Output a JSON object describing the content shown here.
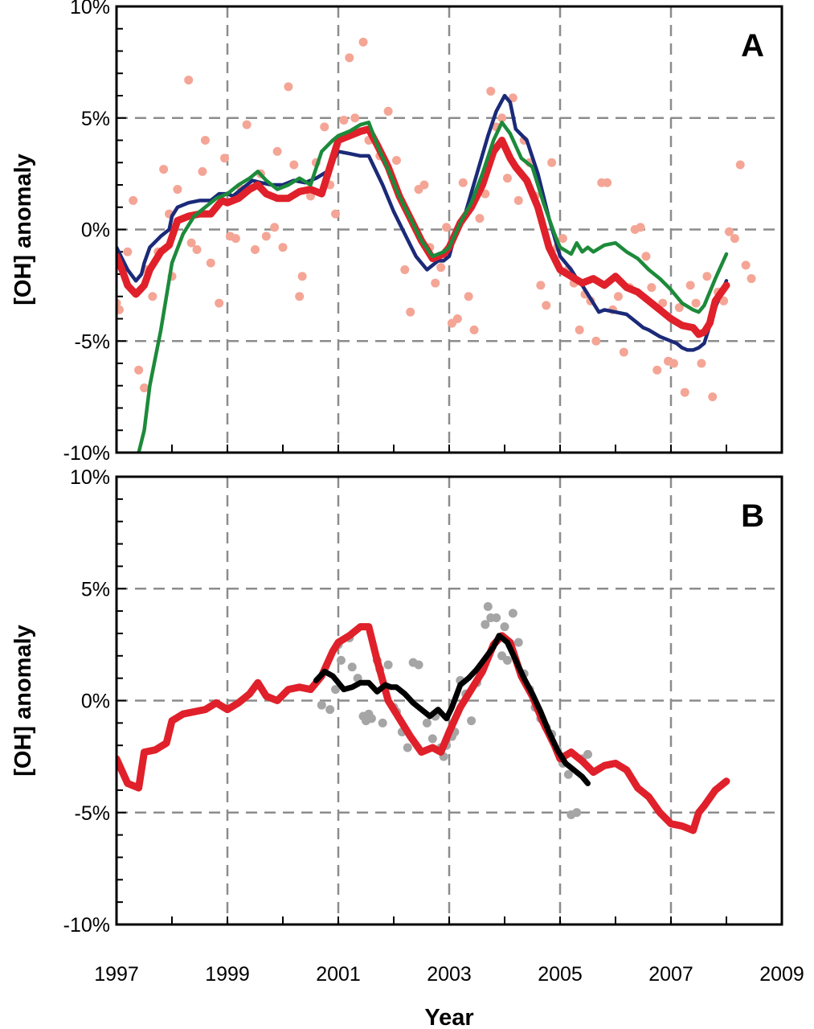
{
  "chart_data": [
    {
      "type": "line",
      "panel_label": "A",
      "xlabel": "",
      "ylabel": "[OH] anomaly",
      "xlim": [
        1997,
        2009
      ],
      "ylim": [
        -10,
        10
      ],
      "y_ticks": [
        "10%",
        "5%",
        "0%",
        "-5%",
        "-10%"
      ],
      "y_tick_values": [
        10,
        5,
        0,
        -5,
        -10
      ],
      "x_tick_values": [
        1997,
        1999,
        2001,
        2003,
        2005,
        2007,
        2009
      ],
      "grid": true,
      "series": [
        {
          "color": "#1b2a78",
          "style": "line",
          "x": [
            1997.0,
            1997.1,
            1997.2,
            1997.35,
            1997.45,
            1997.5,
            1997.6,
            1997.8,
            1997.95,
            1998.0,
            1998.1,
            1998.3,
            1998.5,
            1998.7,
            1998.85,
            1999.0,
            1999.1,
            1999.3,
            1999.45,
            1999.6,
            1999.8,
            2000.0,
            2000.2,
            2000.4,
            2000.6,
            2000.8,
            2001.0,
            2001.2,
            2001.4,
            2001.55,
            2001.8,
            2002.0,
            2002.2,
            2002.4,
            2002.6,
            2002.8,
            2002.9,
            2003.0,
            2003.1,
            2003.3,
            2003.5,
            2003.7,
            2003.85,
            2004.0,
            2004.1,
            2004.2,
            2004.4,
            2004.6,
            2004.8,
            2005.0,
            2005.1,
            2005.2,
            2005.3,
            2005.4,
            2005.5,
            2005.6,
            2005.7,
            2005.8,
            2006.0,
            2006.2,
            2006.4,
            2006.5,
            2006.6,
            2006.8,
            2007.0,
            2007.1,
            2007.2,
            2007.3,
            2007.4,
            2007.5,
            2007.6,
            2007.7,
            2007.8,
            2008.0
          ],
          "y": [
            -0.8,
            -1.3,
            -1.8,
            -2.3,
            -2.0,
            -1.5,
            -0.8,
            -0.3,
            0.0,
            0.6,
            1.0,
            1.2,
            1.3,
            1.3,
            1.6,
            1.6,
            1.5,
            1.9,
            2.2,
            2.1,
            2.0,
            2.0,
            2.2,
            2.1,
            2.3,
            2.6,
            3.5,
            3.4,
            3.3,
            3.3,
            2.0,
            0.8,
            -0.2,
            -1.2,
            -1.8,
            -1.4,
            -1.4,
            -1.2,
            -0.3,
            0.8,
            2.5,
            4.2,
            5.3,
            6.0,
            5.7,
            4.5,
            4.0,
            2.5,
            0.5,
            -1.2,
            -1.5,
            -1.8,
            -2.2,
            -2.5,
            -2.9,
            -3.3,
            -3.7,
            -3.6,
            -3.7,
            -3.8,
            -4.2,
            -4.4,
            -4.5,
            -4.8,
            -5.0,
            -5.1,
            -5.3,
            -5.4,
            -5.4,
            -5.3,
            -5.1,
            -4.3,
            -3.5,
            -2.3
          ]
        },
        {
          "color": "#e0202a",
          "style": "line",
          "x": [
            1997.0,
            1997.1,
            1997.2,
            1997.35,
            1997.5,
            1997.6,
            1997.8,
            1997.95,
            1998.1,
            1998.3,
            1998.5,
            1998.7,
            1998.9,
            1999.0,
            1999.2,
            1999.4,
            1999.55,
            1999.7,
            1999.9,
            2000.1,
            2000.3,
            2000.5,
            2000.7,
            2001.0,
            2001.2,
            2001.4,
            2001.55,
            2001.7,
            2001.9,
            2002.1,
            2002.3,
            2002.5,
            2002.7,
            2002.9,
            2003.0,
            2003.2,
            2003.4,
            2003.6,
            2003.8,
            2003.95,
            2004.1,
            2004.2,
            2004.4,
            2004.6,
            2004.8,
            2005.0,
            2005.2,
            2005.4,
            2005.6,
            2005.8,
            2006.0,
            2006.2,
            2006.4,
            2006.6,
            2006.8,
            2007.0,
            2007.2,
            2007.4,
            2007.5,
            2007.6,
            2007.7,
            2007.8,
            2008.0
          ],
          "y": [
            -1.2,
            -1.8,
            -2.5,
            -2.9,
            -2.5,
            -1.8,
            -1.0,
            -0.7,
            0.4,
            0.6,
            0.7,
            0.7,
            1.3,
            1.2,
            1.4,
            1.8,
            2.0,
            1.6,
            1.4,
            1.4,
            1.7,
            1.8,
            1.6,
            4.0,
            4.2,
            4.4,
            4.5,
            3.8,
            2.8,
            1.5,
            0.5,
            -0.5,
            -1.3,
            -1.1,
            -0.8,
            0.3,
            1.0,
            2.0,
            3.5,
            4.0,
            3.2,
            2.8,
            2.2,
            1.0,
            -0.8,
            -1.8,
            -2.1,
            -2.4,
            -2.2,
            -2.5,
            -2.1,
            -2.6,
            -2.8,
            -3.2,
            -3.6,
            -4.0,
            -4.3,
            -4.4,
            -4.7,
            -4.6,
            -4.2,
            -3.2,
            -2.5
          ]
        },
        {
          "color": "#1c8a3a",
          "style": "line",
          "x": [
            1997.4,
            1997.5,
            1997.6,
            1997.8,
            1998.0,
            1998.2,
            1998.4,
            1998.6,
            1998.8,
            1999.0,
            1999.2,
            1999.4,
            1999.55,
            1999.7,
            1999.9,
            2000.1,
            2000.3,
            2000.5,
            2000.7,
            2000.9,
            2001.0,
            2001.2,
            2001.4,
            2001.55,
            2001.7,
            2001.9,
            2002.1,
            2002.3,
            2002.5,
            2002.7,
            2002.9,
            2003.0,
            2003.2,
            2003.4,
            2003.6,
            2003.8,
            2003.95,
            2004.1,
            2004.3,
            2004.5,
            2004.7,
            2004.9,
            2005.0,
            2005.2,
            2005.3,
            2005.4,
            2005.5,
            2005.6,
            2005.8,
            2006.0,
            2006.2,
            2006.4,
            2006.6,
            2006.8,
            2007.0,
            2007.2,
            2007.4,
            2007.5,
            2007.6,
            2007.8,
            2008.0
          ],
          "y": [
            -10.0,
            -9.0,
            -7.0,
            -4.5,
            -1.5,
            -0.2,
            0.6,
            1.0,
            1.4,
            1.6,
            2.0,
            2.3,
            2.6,
            2.2,
            1.8,
            2.0,
            2.3,
            2.0,
            3.5,
            4.0,
            4.2,
            4.4,
            4.7,
            4.8,
            3.8,
            2.7,
            1.5,
            0.5,
            -0.5,
            -1.2,
            -1.0,
            -0.8,
            0.3,
            1.2,
            2.5,
            4.0,
            4.8,
            4.3,
            3.2,
            2.8,
            1.2,
            -0.2,
            -0.8,
            -1.1,
            -0.6,
            -1.0,
            -0.8,
            -1.0,
            -0.7,
            -0.6,
            -1.0,
            -1.3,
            -1.8,
            -2.2,
            -2.7,
            -3.3,
            -3.6,
            -3.7,
            -3.4,
            -2.2,
            -1.1
          ]
        },
        {
          "color": "#f4a595",
          "style": "scatter",
          "x": [
            1997.0,
            1997.05,
            1997.2,
            1997.3,
            1997.4,
            1997.5,
            1997.55,
            1997.65,
            1997.75,
            1997.85,
            1997.95,
            1998.0,
            1998.1,
            1998.3,
            1998.35,
            1998.45,
            1998.55,
            1998.6,
            1998.7,
            1998.85,
            1998.95,
            1999.05,
            1999.15,
            1999.25,
            1999.35,
            1999.5,
            1999.6,
            1999.7,
            1999.85,
            1999.9,
            2000.0,
            2000.1,
            2000.2,
            2000.3,
            2000.35,
            2000.5,
            2000.6,
            2000.75,
            2000.85,
            2000.95,
            2001.1,
            2001.2,
            2001.3,
            2001.45,
            2001.55,
            2001.75,
            2001.9,
            2002.05,
            2002.2,
            2002.3,
            2002.45,
            2002.55,
            2002.65,
            2002.75,
            2002.85,
            2002.95,
            2003.05,
            2003.15,
            2003.25,
            2003.35,
            2003.45,
            2003.55,
            2003.65,
            2003.75,
            2003.85,
            2003.95,
            2004.05,
            2004.15,
            2004.25,
            2004.35,
            2004.45,
            2004.55,
            2004.65,
            2004.75,
            2004.85,
            2004.95,
            2005.05,
            2005.15,
            2005.25,
            2005.35,
            2005.45,
            2005.55,
            2005.65,
            2005.75,
            2005.85,
            2005.95,
            2006.05,
            2006.15,
            2006.25,
            2006.35,
            2006.45,
            2006.55,
            2006.65,
            2006.75,
            2006.85,
            2006.95,
            2007.05,
            2007.15,
            2007.25,
            2007.35,
            2007.45,
            2007.55,
            2007.65,
            2007.75,
            2007.85,
            2007.95,
            2008.05,
            2008.15,
            2008.25,
            2008.35,
            2008.45
          ],
          "y": [
            -3.3,
            -3.6,
            -1.0,
            1.3,
            -6.3,
            -7.1,
            -1.8,
            -3.0,
            -1.0,
            2.7,
            0.7,
            -2.1,
            1.8,
            6.7,
            -0.6,
            -0.9,
            2.6,
            4.0,
            -1.5,
            -3.3,
            3.2,
            -0.3,
            -0.4,
            1.8,
            4.7,
            -0.9,
            2.5,
            -0.3,
            0.1,
            3.5,
            -0.8,
            6.4,
            2.9,
            -3.0,
            -2.1,
            1.5,
            3.0,
            4.6,
            2.0,
            0.7,
            4.9,
            7.7,
            5.0,
            8.4,
            4.0,
            3.3,
            5.3,
            3.1,
            -1.8,
            -3.7,
            1.8,
            2.0,
            -0.8,
            -2.4,
            -1.7,
            0.1,
            -4.2,
            -4.0,
            2.1,
            -3.0,
            -4.5,
            0.5,
            1.6,
            6.2,
            4.6,
            5.0,
            2.3,
            5.9,
            1.3,
            4.0,
            3.0,
            1.5,
            -2.5,
            -3.4,
            3.0,
            -0.8,
            -0.4,
            -1.8,
            -2.4,
            -4.5,
            -2.9,
            -3.2,
            -5.0,
            2.1,
            2.1,
            -3.6,
            -3.0,
            -5.5,
            -2.6,
            0.0,
            0.1,
            -1.2,
            -2.6,
            -6.3,
            -3.3,
            -5.9,
            -6.0,
            -3.5,
            -7.3,
            -2.5,
            -3.3,
            -6.0,
            -2.1,
            -7.5,
            -2.8,
            -3.2,
            -0.1,
            -0.4,
            2.9,
            -1.6,
            -2.2
          ]
        }
      ]
    },
    {
      "type": "line",
      "panel_label": "B",
      "xlabel": "Year",
      "ylabel": "[OH] anomaly",
      "xlim": [
        1997,
        2009
      ],
      "ylim": [
        -10,
        10
      ],
      "y_ticks": [
        "10%",
        "5%",
        "0%",
        "-5%",
        "-10%"
      ],
      "y_tick_values": [
        10,
        5,
        0,
        -5,
        -10
      ],
      "x_ticks": [
        "1997",
        "1999",
        "2001",
        "2003",
        "2005",
        "2007",
        "2009"
      ],
      "x_tick_values": [
        1997,
        1999,
        2001,
        2003,
        2005,
        2007,
        2009
      ],
      "grid": true,
      "series": [
        {
          "color": "#e0202a",
          "style": "line",
          "x": [
            1997.0,
            1997.2,
            1997.4,
            1997.5,
            1997.7,
            1997.9,
            1998.0,
            1998.2,
            1998.4,
            1998.6,
            1998.8,
            1999.0,
            1999.2,
            1999.4,
            1999.55,
            1999.7,
            1999.9,
            2000.1,
            2000.3,
            2000.5,
            2000.7,
            2000.9,
            2001.0,
            2001.2,
            2001.4,
            2001.55,
            2001.7,
            2001.9,
            2002.1,
            2002.3,
            2002.5,
            2002.7,
            2002.85,
            2003.0,
            2003.2,
            2003.4,
            2003.6,
            2003.8,
            2003.95,
            2004.1,
            2004.3,
            2004.5,
            2004.7,
            2004.9,
            2005.0,
            2005.2,
            2005.4,
            2005.6,
            2005.8,
            2006.0,
            2006.2,
            2006.4,
            2006.6,
            2006.8,
            2007.0,
            2007.2,
            2007.4,
            2007.5,
            2007.6,
            2007.8,
            2008.0
          ],
          "y": [
            -2.6,
            -3.7,
            -3.9,
            -2.3,
            -2.2,
            -1.9,
            -0.9,
            -0.6,
            -0.5,
            -0.4,
            -0.1,
            -0.4,
            -0.1,
            0.3,
            0.8,
            0.2,
            0.0,
            0.5,
            0.6,
            0.5,
            1.1,
            2.2,
            2.6,
            2.9,
            3.3,
            3.3,
            1.8,
            0.0,
            -0.8,
            -1.6,
            -2.3,
            -2.1,
            -2.3,
            -1.4,
            -0.3,
            0.5,
            1.3,
            2.5,
            2.9,
            2.6,
            1.1,
            0.2,
            -1.0,
            -2.0,
            -2.6,
            -2.3,
            -2.7,
            -3.2,
            -2.9,
            -2.8,
            -3.1,
            -3.9,
            -4.3,
            -5.0,
            -5.5,
            -5.6,
            -5.8,
            -5.0,
            -4.7,
            -4.0,
            -3.6
          ]
        },
        {
          "color": "#000000",
          "style": "line",
          "x": [
            2000.6,
            2000.75,
            2000.9,
            2001.0,
            2001.1,
            2001.25,
            2001.4,
            2001.55,
            2001.7,
            2001.85,
            2001.95,
            2002.05,
            2002.2,
            2002.35,
            2002.5,
            2002.65,
            2002.8,
            2002.95,
            2003.05,
            2003.2,
            2003.35,
            2003.5,
            2003.65,
            2003.8,
            2003.9,
            2004.05,
            2004.2,
            2004.35,
            2004.5,
            2004.65,
            2004.8,
            2004.95,
            2005.1,
            2005.25,
            2005.4,
            2005.5
          ],
          "y": [
            0.9,
            1.3,
            1.1,
            0.8,
            0.5,
            0.6,
            0.8,
            0.8,
            0.4,
            0.7,
            0.6,
            0.6,
            0.3,
            -0.1,
            -0.4,
            -0.7,
            -0.4,
            -0.8,
            -0.3,
            0.7,
            1.0,
            1.4,
            1.9,
            2.4,
            2.9,
            2.6,
            1.8,
            1.0,
            0.3,
            -0.5,
            -1.4,
            -2.2,
            -2.8,
            -3.1,
            -3.4,
            -3.7
          ]
        },
        {
          "color": "#a5a5a5",
          "style": "scatter",
          "x": [
            2000.7,
            2000.85,
            2000.95,
            2001.0,
            2001.05,
            2001.2,
            2001.25,
            2001.35,
            2001.45,
            2001.5,
            2001.55,
            2001.6,
            2001.7,
            2001.75,
            2001.8,
            2001.9,
            2002.0,
            2002.05,
            2002.15,
            2002.25,
            2002.35,
            2002.45,
            2002.6,
            2002.7,
            2002.75,
            2002.85,
            2002.9,
            2002.95,
            2003.05,
            2003.1,
            2003.2,
            2003.3,
            2003.4,
            2003.5,
            2003.55,
            2003.65,
            2003.7,
            2003.75,
            2003.85,
            2003.95,
            2004.0,
            2004.05,
            2004.15,
            2004.25,
            2004.35,
            2004.45,
            2004.55,
            2004.65,
            2004.75,
            2004.85,
            2004.95,
            2005.05,
            2005.15,
            2005.2,
            2005.3,
            2005.4,
            2005.5
          ],
          "y": [
            -0.2,
            -0.4,
            0.5,
            2.5,
            1.8,
            2.8,
            1.5,
            1.0,
            -0.7,
            -0.9,
            -0.6,
            -0.8,
            1.8,
            1.4,
            -1.0,
            1.6,
            -0.3,
            -0.5,
            -1.4,
            -2.1,
            1.7,
            1.6,
            -1.0,
            -1.7,
            -0.7,
            -2.1,
            -2.5,
            -2.0,
            -1.6,
            -1.4,
            0.9,
            0.3,
            -0.9,
            0.8,
            1.3,
            3.4,
            4.2,
            3.7,
            3.7,
            2.0,
            3.3,
            1.8,
            3.9,
            2.6,
            1.2,
            0.5,
            -0.3,
            -0.8,
            -1.2,
            -1.5,
            -2.2,
            -2.8,
            -3.3,
            -5.1,
            -5.0,
            -2.6,
            -2.4
          ]
        }
      ]
    }
  ]
}
